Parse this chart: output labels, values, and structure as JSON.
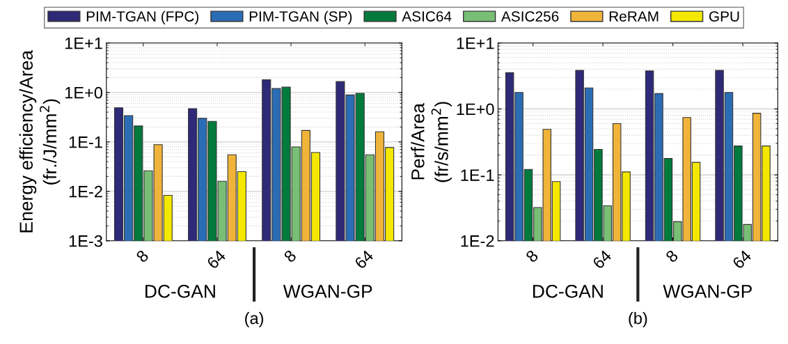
{
  "chart_data": [
    {
      "type": "bar",
      "ylabel": "Energy efficiency/Area\n(fr./J/mm$^{2}$)",
      "categories": [
        "8",
        "64",
        "8",
        "64"
      ],
      "log": true,
      "grid": true,
      "legend": "top",
      "ylim": [
        0.001,
        10
      ],
      "yticks": [
        {
          "value": 0.001,
          "label": "1E-3"
        },
        {
          "value": 0.01,
          "label": "1E-2"
        },
        {
          "value": 0.1,
          "label": "1E-1"
        },
        {
          "value": 1,
          "label": "1E+0"
        },
        {
          "value": 10,
          "label": "1E+1"
        }
      ],
      "annotations": [
        "DC-GAN",
        "WGAN-GP",
        "(a)"
      ],
      "series": [
        {
          "name": "PIM-TGAN (FPC)",
          "color": "#2e2a78",
          "values": [
            0.49,
            0.47,
            1.8,
            1.66
          ]
        },
        {
          "name": "PIM-TGAN (SP)",
          "color": "#2b6db5",
          "values": [
            0.34,
            0.3,
            1.2,
            0.89
          ]
        },
        {
          "name": "ASIC64",
          "color": "#007a3d",
          "values": [
            0.21,
            0.26,
            1.28,
            0.96
          ]
        },
        {
          "name": "ASIC256",
          "color": "#78bf75",
          "values": [
            0.026,
            0.016,
            0.079,
            0.055
          ]
        },
        {
          "name": "ReRAM",
          "color": "#f0b43a",
          "values": [
            0.088,
            0.055,
            0.17,
            0.16
          ]
        },
        {
          "name": "GPU",
          "color": "#f5e800",
          "values": [
            0.0083,
            0.025,
            0.061,
            0.077
          ]
        }
      ]
    },
    {
      "type": "bar",
      "ylabel": "Perf/Area\n(fr/s/mm$^{2}$)",
      "categories": [
        "8",
        "64",
        "8",
        "64"
      ],
      "log": true,
      "grid": true,
      "ylim": [
        0.01,
        10
      ],
      "yticks": [
        {
          "value": 0.01,
          "label": "1E-2"
        },
        {
          "value": 0.1,
          "label": "1E-1"
        },
        {
          "value": 1,
          "label": "1E+0"
        },
        {
          "value": 10,
          "label": "1E+1"
        }
      ],
      "annotations": [
        "DC-GAN",
        "WGAN-GP",
        "(b)"
      ],
      "series": [
        {
          "color": "#2e2a78",
          "values": [
            3.55,
            3.84,
            3.77,
            3.84
          ]
        },
        {
          "color": "#2b6db5",
          "values": [
            1.78,
            2.08,
            1.71,
            1.78
          ]
        },
        {
          "color": "#007a3d",
          "values": [
            0.121,
            0.244,
            0.177,
            0.274
          ]
        },
        {
          "color": "#78bf75",
          "values": [
            0.032,
            0.034,
            0.0195,
            0.0177
          ]
        },
        {
          "color": "#f0b43a",
          "values": [
            0.49,
            0.6,
            0.74,
            0.86
          ]
        },
        {
          "color": "#f5e800",
          "values": [
            0.079,
            0.111,
            0.155,
            0.274
          ]
        }
      ]
    }
  ]
}
